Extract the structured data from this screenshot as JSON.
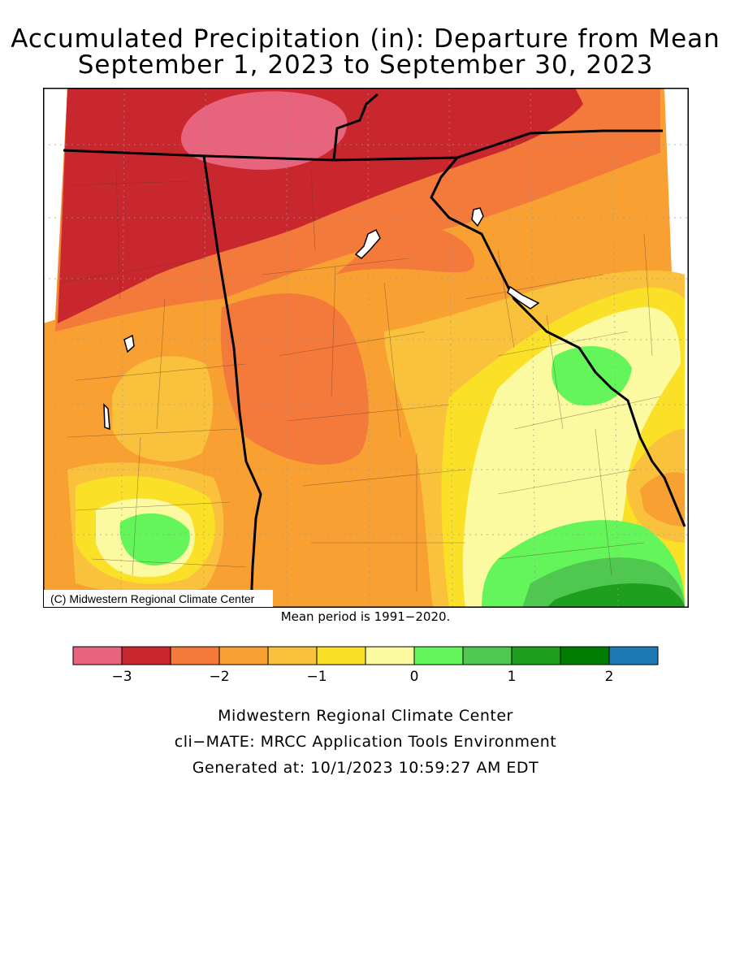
{
  "title": {
    "line1": "Accumulated Precipitation (in): Departure from Mean",
    "line2": "September 1, 2023 to September 30, 2023"
  },
  "map": {
    "copyright": "(C) Midwestern Regional Climate Center",
    "mean_period_note": "Mean period is 1991−2020."
  },
  "legend": {
    "bins": [
      {
        "color": "#e8647d"
      },
      {
        "color": "#c8282d"
      },
      {
        "color": "#f47a3c"
      },
      {
        "color": "#f8a032"
      },
      {
        "color": "#fac23c"
      },
      {
        "color": "#fae128"
      },
      {
        "color": "#fbfaa0"
      },
      {
        "color": "#64f55a"
      },
      {
        "color": "#50c850"
      },
      {
        "color": "#1ea01e"
      },
      {
        "color": "#007d00"
      },
      {
        "color": "#1e78b4"
      }
    ],
    "tick_labels": [
      "−3",
      "−2",
      "−1",
      "0",
      "1",
      "2"
    ]
  },
  "footer": {
    "line1": "Midwestern Regional Climate Center",
    "line2": "cli−MATE: MRCC Application Tools Environment",
    "line3": "Generated at: 10/1/2023 10:59:27 AM EDT"
  }
}
